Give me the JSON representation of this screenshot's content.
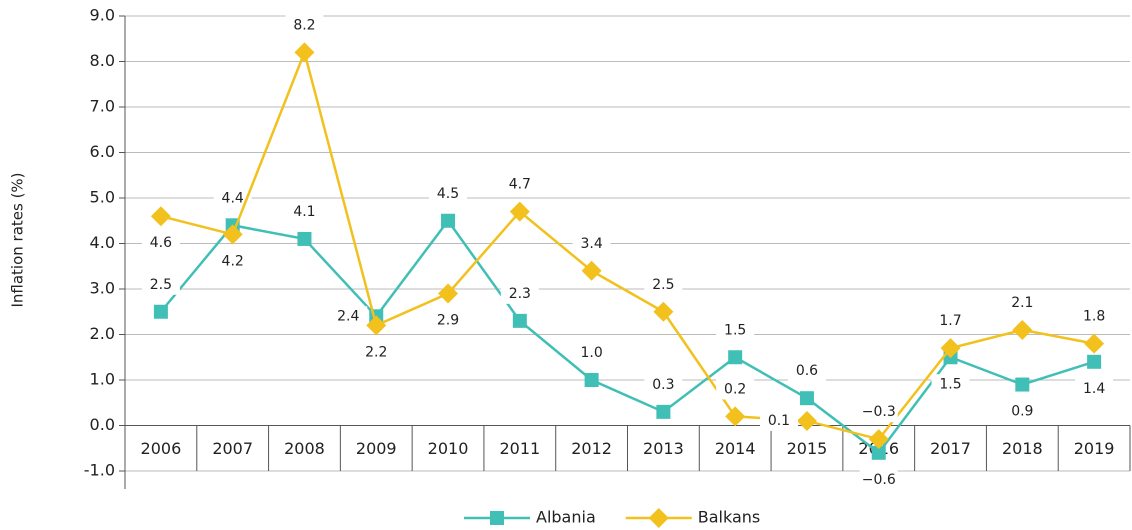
{
  "chart_data": {
    "type": "line",
    "ylabel": "Inflation rates (%)",
    "categories": [
      "2006",
      "2007",
      "2008",
      "2009",
      "2010",
      "2011",
      "2012",
      "2013",
      "2014",
      "2015",
      "2016",
      "2017",
      "2018",
      "2019"
    ],
    "series": [
      {
        "name": "Albania",
        "color": "#40bfb6",
        "marker": "square",
        "values": [
          2.5,
          4.4,
          4.1,
          2.4,
          4.5,
          2.3,
          1.0,
          0.3,
          1.5,
          0.6,
          -0.6,
          1.5,
          0.9,
          1.4
        ],
        "value_labels": [
          "2.5",
          "4.4",
          "4.1",
          "2.4",
          "4.5",
          "2.3",
          "1.0",
          "0.3",
          "1.5",
          "0.6",
          "−0.6",
          "1.5",
          "0.9",
          "1.4"
        ]
      },
      {
        "name": "Balkans",
        "color": "#f2c11e",
        "marker": "diamond",
        "values": [
          4.6,
          4.2,
          8.2,
          2.2,
          2.9,
          4.7,
          3.4,
          2.5,
          0.2,
          0.1,
          -0.3,
          1.7,
          2.1,
          1.8
        ],
        "value_labels": [
          "4.6",
          "4.2",
          "8.2",
          "2.2",
          "2.9",
          "4.7",
          "3.4",
          "2.5",
          "0.2",
          "0.1",
          "−0.3",
          "1.7",
          "2.1",
          "1.8"
        ]
      }
    ],
    "ylim": [
      -1,
      9
    ],
    "yticks": [
      {
        "value": -1,
        "label": "-1.0"
      },
      {
        "value": 0,
        "label": "0.0"
      },
      {
        "value": 1,
        "label": "1.0"
      },
      {
        "value": 2,
        "label": "2.0"
      },
      {
        "value": 3,
        "label": "3.0"
      },
      {
        "value": 4,
        "label": "4.0"
      },
      {
        "value": 5,
        "label": "5.0"
      },
      {
        "value": 6,
        "label": "6.0"
      },
      {
        "value": 7,
        "label": "7.0"
      },
      {
        "value": 8,
        "label": "8.0"
      },
      {
        "value": 9,
        "label": "9.0"
      }
    ],
    "grid": true,
    "legend": "bottom"
  }
}
